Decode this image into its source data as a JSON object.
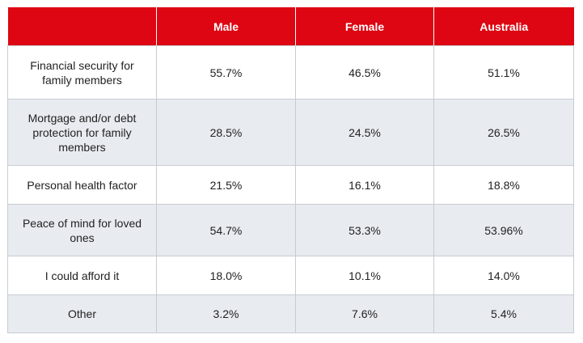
{
  "chart_data": {
    "type": "table",
    "columns": [
      "",
      "Male",
      "Female",
      "Australia"
    ],
    "rows": [
      {
        "label": "Financial security for family members",
        "values": [
          "55.7%",
          "46.5%",
          "51.1%"
        ]
      },
      {
        "label": "Mortgage and/or debt protection for family members",
        "values": [
          "28.5%",
          "24.5%",
          "26.5%"
        ]
      },
      {
        "label": "Personal health factor",
        "values": [
          "21.5%",
          "16.1%",
          "18.8%"
        ]
      },
      {
        "label": "Peace of mind for loved ones",
        "values": [
          "54.7%",
          "53.3%",
          "53.96%"
        ]
      },
      {
        "label": "I could afford it",
        "values": [
          "18.0%",
          "10.1%",
          "14.0%"
        ]
      },
      {
        "label": "Other",
        "values": [
          "3.2%",
          "7.6%",
          "5.4%"
        ]
      }
    ],
    "header_color": "#dd0612",
    "stripe_color": "#e8ebf0"
  }
}
